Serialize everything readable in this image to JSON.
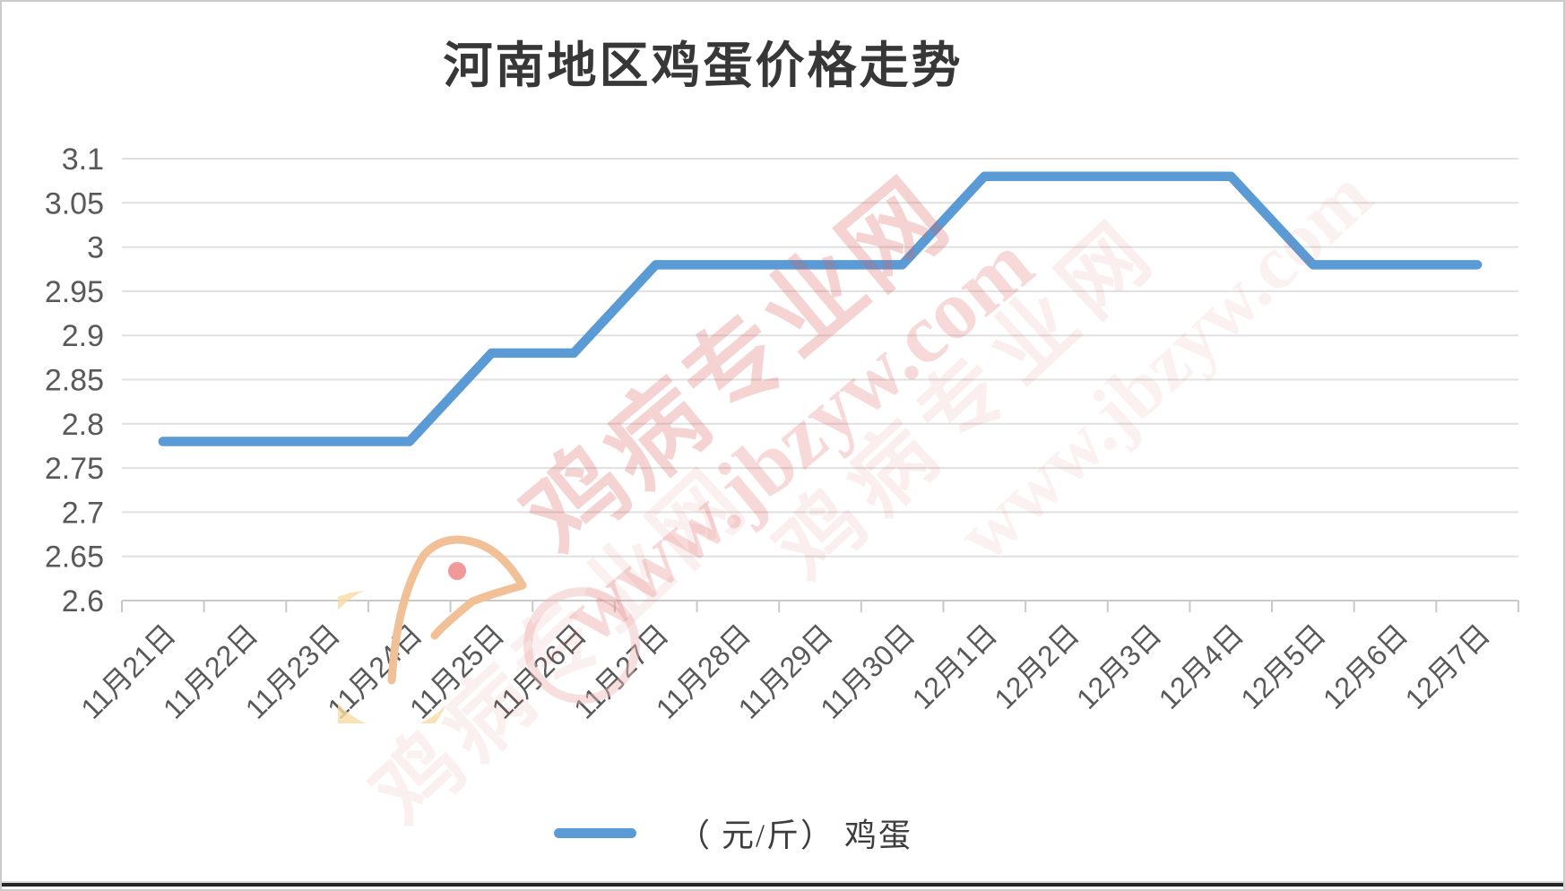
{
  "page": {
    "title": "河南地区鸡蛋价格走势"
  },
  "legend": {
    "label": "（ 元/斤） 鸡蛋"
  },
  "watermark": {
    "brand": "鸡病专业网",
    "site": "www.jbzyw.com"
  },
  "decor": {
    "bird_icon": "chicken-logo",
    "ring_icon": "watermark-ring"
  },
  "chart_data": {
    "type": "line",
    "title": "河南地区鸡蛋价格走势",
    "unit": "元/斤",
    "series_name": "鸡蛋",
    "legend_label": "（ 元/斤） 鸡蛋",
    "categories": [
      "11月21日",
      "11月22日",
      "11月23日",
      "11月24日",
      "11月25日",
      "11月26日",
      "11月27日",
      "11月28日",
      "11月29日",
      "11月30日",
      "12月1日",
      "12月2日",
      "12月3日",
      "12月4日",
      "12月5日",
      "12月6日",
      "12月7日"
    ],
    "values": [
      2.78,
      2.78,
      2.78,
      2.78,
      2.88,
      2.88,
      2.98,
      2.98,
      2.98,
      2.98,
      3.08,
      3.08,
      3.08,
      3.08,
      2.98,
      2.98,
      2.98
    ],
    "ylim": [
      2.6,
      3.1
    ],
    "ytick_step": 0.05,
    "ytick_labels": [
      "2.6",
      "2.65",
      "2.7",
      "2.75",
      "2.8",
      "2.85",
      "2.9",
      "2.95",
      "3",
      "3.05",
      "3.1"
    ],
    "grid": true,
    "legend_position": "bottom",
    "line_color": "#5B9BD5",
    "grid_color": "#e0e0e0",
    "axis_color": "#c9c9c9",
    "label_color": "#595959",
    "watermark_color": "#dd5f5f"
  }
}
